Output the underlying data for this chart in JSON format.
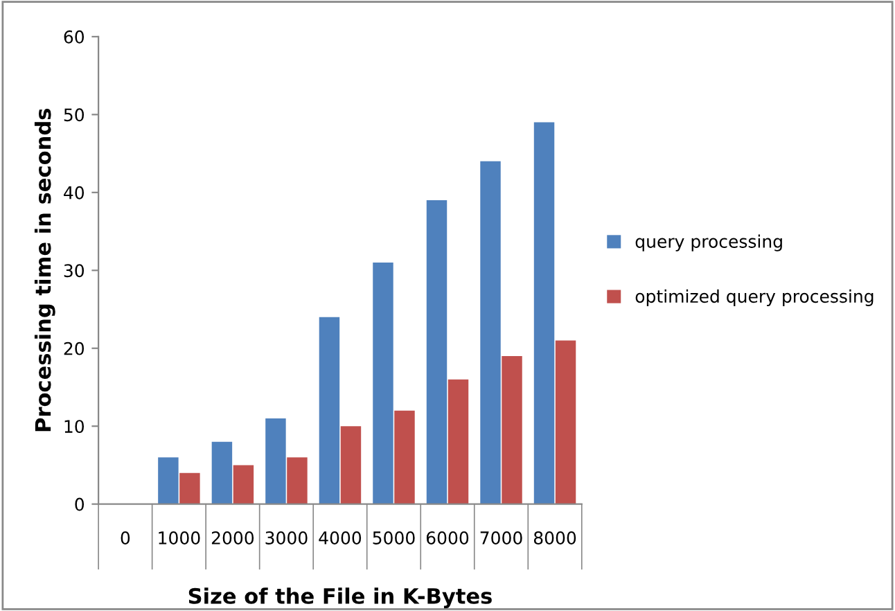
{
  "chart_data": {
    "type": "bar",
    "xlabel": "Size of the File in K-Bytes",
    "ylabel": "Processing time in seconds",
    "categories": [
      "0",
      "1000",
      "2000",
      "3000",
      "4000",
      "5000",
      "6000",
      "7000",
      "8000"
    ],
    "series": [
      {
        "name": "query processing",
        "color": "#4f81bd",
        "values": [
          0,
          6,
          8,
          11,
          24,
          31,
          39,
          44,
          49
        ]
      },
      {
        "name": "optimized query processing",
        "color": "#c0504d",
        "values": [
          0,
          4,
          5,
          6,
          10,
          12,
          16,
          19,
          21
        ]
      }
    ],
    "ylim": [
      0,
      60
    ],
    "yticks": [
      0,
      10,
      20,
      30,
      40,
      50,
      60
    ],
    "grid": false,
    "legend": "right"
  }
}
